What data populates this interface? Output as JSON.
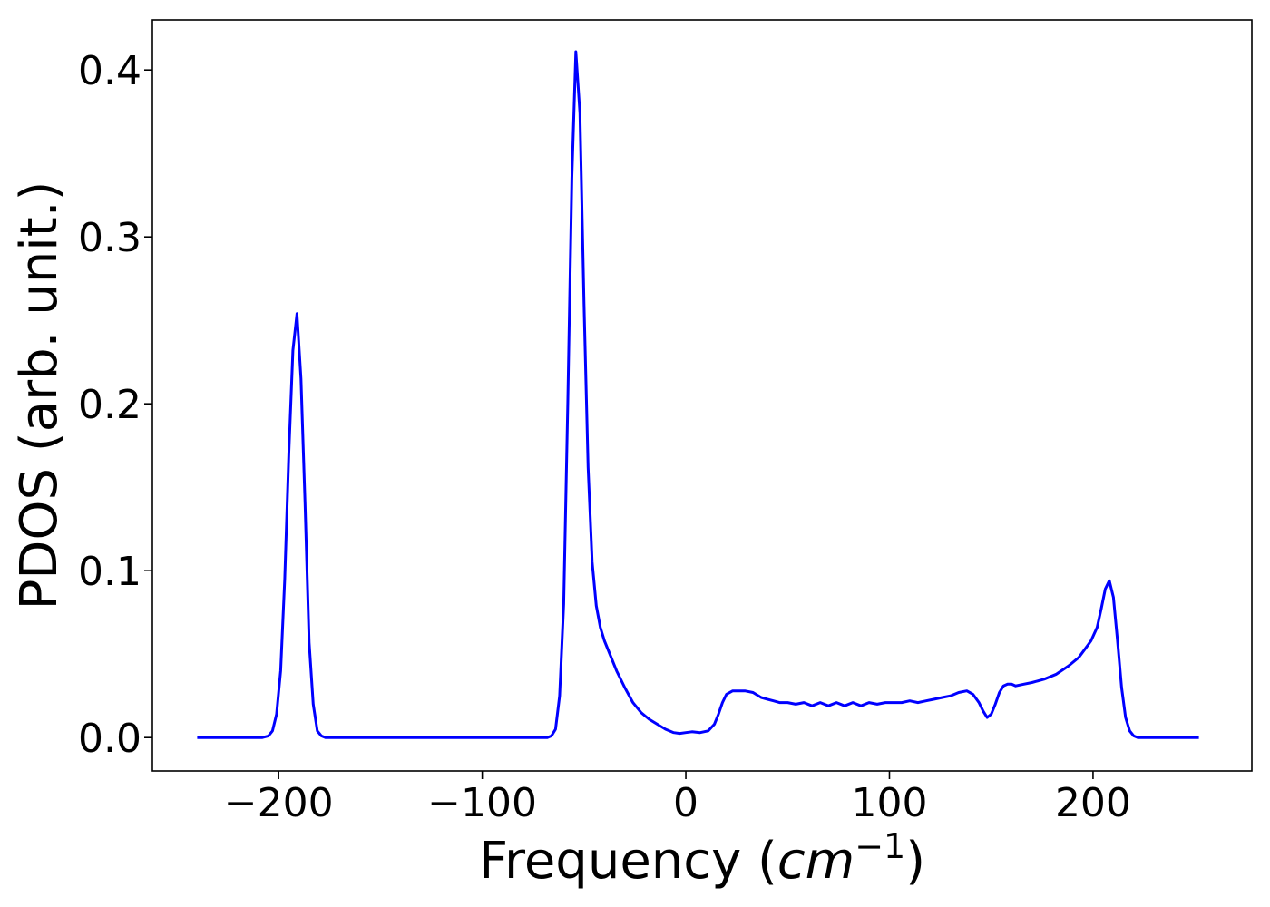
{
  "chart_data": {
    "type": "line",
    "title": "",
    "xlabel_prefix": "Frequency (",
    "xlabel_unit_base": "cm",
    "xlabel_unit_exp": "−1",
    "xlabel_suffix": ")",
    "ylabel": "PDOS (arb. unit.)",
    "xlim": [
      -262,
      278
    ],
    "ylim": [
      -0.02,
      0.43
    ],
    "xticks": [
      -200,
      -100,
      0,
      100,
      200
    ],
    "xtick_labels": [
      "−200",
      "−100",
      "0",
      "100",
      "200"
    ],
    "yticks": [
      0.0,
      0.1,
      0.2,
      0.3,
      0.4
    ],
    "ytick_labels": [
      "0.0",
      "0.1",
      "0.2",
      "0.3",
      "0.4"
    ],
    "grid": false,
    "series": [
      {
        "color": "#0000ff",
        "x": [
          -240,
          -212,
          -208,
          -205,
          -203,
          -201,
          -199,
          -197,
          -195,
          -193,
          -191,
          -189,
          -187,
          -185,
          -183,
          -181,
          -179,
          -177,
          -174,
          -170,
          -160,
          -120,
          -80,
          -68,
          -66,
          -64,
          -62,
          -60,
          -58,
          -56,
          -54,
          -52,
          -50,
          -48,
          -46,
          -44,
          -42,
          -40,
          -37,
          -34,
          -30,
          -26,
          -22,
          -18,
          -14,
          -10,
          -6,
          -3,
          0,
          3,
          7,
          11,
          14,
          16,
          18,
          20,
          23,
          26,
          29,
          33,
          37,
          40,
          43,
          46,
          50,
          54,
          58,
          62,
          66,
          70,
          74,
          78,
          82,
          86,
          90,
          94,
          98,
          102,
          106,
          110,
          114,
          118,
          122,
          126,
          130,
          134,
          138,
          141,
          144,
          146,
          148,
          150,
          152,
          154,
          156,
          158,
          160,
          162,
          166,
          170,
          176,
          182,
          188,
          193,
          196,
          199,
          202,
          204,
          206,
          208,
          210,
          212,
          214,
          216,
          218,
          220,
          222,
          224,
          228,
          252
        ],
        "y": [
          0.0,
          0.0,
          0.0,
          0.001,
          0.004,
          0.014,
          0.04,
          0.095,
          0.17,
          0.232,
          0.254,
          0.215,
          0.14,
          0.057,
          0.02,
          0.004,
          0.001,
          0.0,
          0.0,
          0.0,
          0.0,
          0.0,
          0.0,
          0.0,
          0.001,
          0.005,
          0.025,
          0.08,
          0.2,
          0.335,
          0.411,
          0.374,
          0.26,
          0.162,
          0.105,
          0.079,
          0.066,
          0.058,
          0.049,
          0.04,
          0.03,
          0.021,
          0.015,
          0.011,
          0.008,
          0.005,
          0.003,
          0.0025,
          0.003,
          0.0035,
          0.003,
          0.004,
          0.008,
          0.014,
          0.021,
          0.026,
          0.028,
          0.028,
          0.028,
          0.027,
          0.024,
          0.023,
          0.022,
          0.021,
          0.021,
          0.02,
          0.021,
          0.019,
          0.021,
          0.019,
          0.021,
          0.019,
          0.021,
          0.019,
          0.021,
          0.02,
          0.021,
          0.021,
          0.021,
          0.022,
          0.021,
          0.022,
          0.023,
          0.024,
          0.025,
          0.027,
          0.028,
          0.026,
          0.021,
          0.016,
          0.012,
          0.014,
          0.02,
          0.027,
          0.031,
          0.032,
          0.032,
          0.031,
          0.032,
          0.033,
          0.035,
          0.038,
          0.043,
          0.048,
          0.053,
          0.058,
          0.066,
          0.077,
          0.089,
          0.094,
          0.084,
          0.058,
          0.03,
          0.012,
          0.004,
          0.001,
          0.0,
          0.0,
          0.0,
          0.0
        ]
      }
    ]
  }
}
